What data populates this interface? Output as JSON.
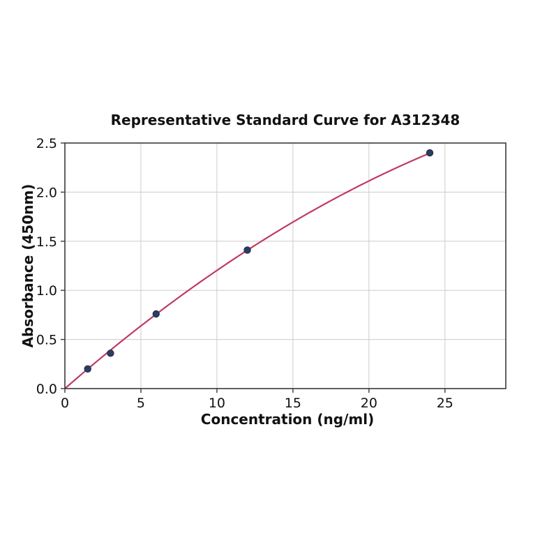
{
  "chart_data": {
    "type": "scatter",
    "title": "Representative Standard Curve for A312348",
    "xlabel": "Concentration (ng/ml)",
    "ylabel": "Absorbance (450nm)",
    "xlim": [
      0,
      29
    ],
    "ylim": [
      0,
      2.5
    ],
    "xticks": [
      0,
      5,
      10,
      15,
      20,
      25
    ],
    "xtick_labels": [
      "0",
      "5",
      "10",
      "15",
      "20",
      "25"
    ],
    "yticks": [
      0,
      0.5,
      1,
      1.5,
      2,
      2.5
    ],
    "ytick_labels": [
      "0.0",
      "0.5",
      "1.0",
      "1.5",
      "2.0",
      "2.5"
    ],
    "grid": true,
    "legend": null,
    "points": [
      {
        "x": 1.5,
        "y": 0.2
      },
      {
        "x": 3,
        "y": 0.36
      },
      {
        "x": 6,
        "y": 0.76
      },
      {
        "x": 12,
        "y": 1.41
      },
      {
        "x": 24,
        "y": 2.4
      }
    ],
    "fit_curve": {
      "type": "quadratic",
      "a": 0.1349,
      "b": -0.00146,
      "x_start": 0,
      "x_end": 24
    },
    "colors": {
      "curve": "#c03a60",
      "marker_fill": "#2c3d62",
      "marker_edge": "#232f4e",
      "grid": "#cccccc",
      "spine": "#3a3a3a",
      "text": "#111111",
      "background": "#ffffff"
    }
  }
}
